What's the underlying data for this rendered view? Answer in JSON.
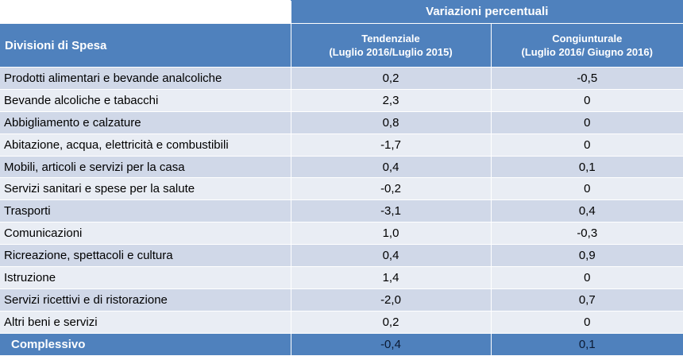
{
  "header": {
    "group_title": "Variazioni percentuali",
    "col_label": "Divisioni di Spesa",
    "tendenziale_title": "Tendenziale",
    "tendenziale_period": "(Luglio 2016/Luglio 2015)",
    "congiunturale_title": "Congiunturale",
    "congiunturale_period": "(Luglio 2016/ Giugno 2016)"
  },
  "rows": [
    {
      "label": "Prodotti alimentari e bevande analcoliche",
      "tendenziale": "0,2",
      "congiunturale": "-0,5"
    },
    {
      "label": "Bevande alcoliche e tabacchi",
      "tendenziale": "2,3",
      "congiunturale": "0"
    },
    {
      "label": "Abbigliamento e calzature",
      "tendenziale": "0,8",
      "congiunturale": "0"
    },
    {
      "label": "Abitazione, acqua, elettricità e combustibili",
      "tendenziale": "-1,7",
      "congiunturale": "0"
    },
    {
      "label": "Mobili, articoli e servizi per la casa",
      "tendenziale": "0,4",
      "congiunturale": "0,1"
    },
    {
      "label": "Servizi sanitari e spese per la salute",
      "tendenziale": "-0,2",
      "congiunturale": "0"
    },
    {
      "label": "Trasporti",
      "tendenziale": "-3,1",
      "congiunturale": "0,4"
    },
    {
      "label": "Comunicazioni",
      "tendenziale": "1,0",
      "congiunturale": "-0,3"
    },
    {
      "label": "Ricreazione, spettacoli e cultura",
      "tendenziale": "0,4",
      "congiunturale": "0,9"
    },
    {
      "label": "Istruzione",
      "tendenziale": "1,4",
      "congiunturale": "0"
    },
    {
      "label": "Servizi ricettivi e di ristorazione",
      "tendenziale": "-2,0",
      "congiunturale": "0,7"
    },
    {
      "label": "Altri beni e servizi",
      "tendenziale": "0,2",
      "congiunturale": "0"
    }
  ],
  "total": {
    "label": "Complessivo",
    "tendenziale": "-0,4",
    "congiunturale": "0,1"
  }
}
